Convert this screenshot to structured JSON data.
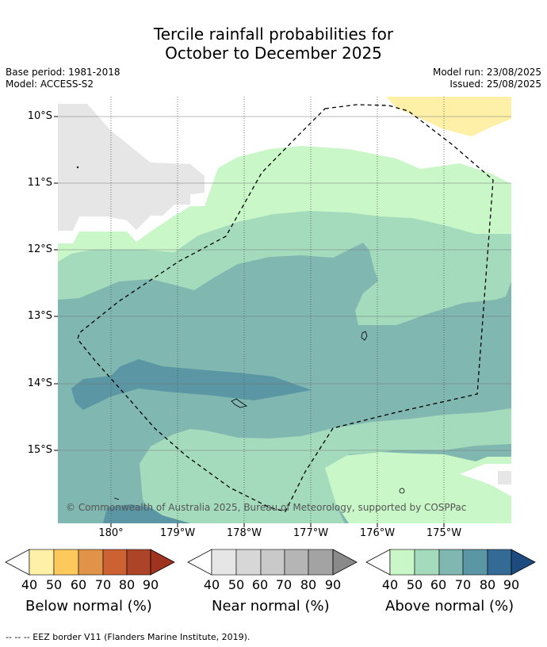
{
  "title_line1": "Tercile rainfall probabilities for",
  "title_line2": "October to December 2025",
  "meta_left": {
    "base_period": "Base period: 1981-2018",
    "model": "Model: ACCESS-S2"
  },
  "meta_right": {
    "model_run": "Model run: 23/08/2025",
    "issued": "Issued: 25/08/2025"
  },
  "lat_labels": [
    "10°S",
    "11°S",
    "12°S",
    "13°S",
    "14°S",
    "15°S"
  ],
  "lon_labels": [
    "180°",
    "179°W",
    "178°W",
    "177°W",
    "176°W",
    "175°W"
  ],
  "copyright": "© Commonwealth of Australia 2025, Bureau of Meteorology, supported by COSPPac",
  "legends": [
    {
      "caption": "Below normal (%)",
      "ticks": [
        "40",
        "50",
        "60",
        "70",
        "80",
        "90"
      ],
      "colors": [
        "#fff0a8",
        "#fdc85c",
        "#e2934a",
        "#cc6232",
        "#ad4427",
        "#a0331f"
      ]
    },
    {
      "caption": "Near normal (%)",
      "ticks": [
        "40",
        "50",
        "60",
        "70",
        "80",
        "90"
      ],
      "colors": [
        "#e6e6e6",
        "#d7d7d7",
        "#c9c9c9",
        "#b5b5b5",
        "#a3a3a3",
        "#8a8a8a"
      ]
    },
    {
      "caption": "Above normal (%)",
      "ticks": [
        "40",
        "50",
        "60",
        "70",
        "80",
        "90"
      ],
      "colors": [
        "#c9f7c8",
        "#a4dbbd",
        "#80b7b0",
        "#5a96a4",
        "#346a96",
        "#1d4b80"
      ]
    }
  ],
  "footnote": "--  --  -- EEZ border V11 (Flanders Marine Institute, 2019)."
}
